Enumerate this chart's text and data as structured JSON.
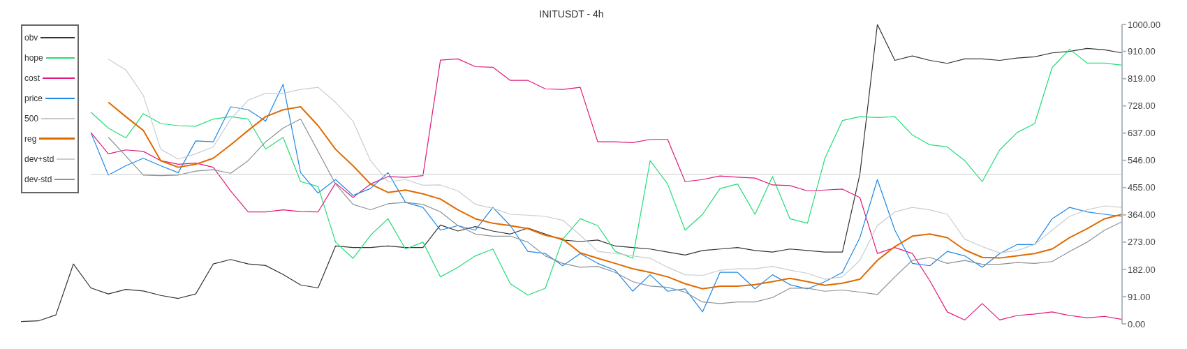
{
  "chart_data": {
    "type": "line",
    "title": "INITUSDT - 4h",
    "categories": [
      null,
      null,
      null,
      null,
      null,
      null,
      null,
      null,
      null,
      null,
      null,
      null,
      null,
      null,
      null,
      null,
      null,
      null,
      null,
      null,
      null,
      null,
      null,
      null,
      null,
      null,
      null,
      null,
      null,
      null,
      null,
      null,
      null,
      null,
      null,
      null,
      null,
      null,
      null,
      null,
      null,
      null,
      null,
      null,
      null,
      null,
      null,
      null,
      null,
      null,
      null,
      null,
      null,
      null,
      null,
      null,
      null,
      null,
      null,
      null,
      null,
      null,
      null,
      null
    ],
    "series": [
      {
        "name": "obv",
        "color": "#333333",
        "values": [
          8,
          10,
          30,
          200,
          120,
          100,
          115,
          110,
          95,
          85,
          100,
          200,
          215,
          200,
          195,
          165,
          130,
          120,
          260,
          255,
          255,
          260,
          255,
          255,
          330,
          310,
          325,
          310,
          300,
          320,
          300,
          280,
          275,
          280,
          260,
          255,
          250,
          240,
          230,
          245,
          250,
          255,
          245,
          240,
          250,
          245,
          240,
          240,
          500,
          1000,
          880,
          895,
          880,
          870,
          885,
          885,
          880,
          888,
          892,
          905,
          910,
          920,
          915,
          905
        ]
      },
      {
        "name": "hope",
        "color": "#22dd77",
        "values": [
          null,
          null,
          null,
          null,
          707,
          654,
          621,
          702,
          669,
          662,
          660,
          684,
          692,
          684,
          584,
          623,
          475,
          459,
          273,
          219,
          296,
          351,
          250,
          273,
          157,
          189,
          227,
          250,
          134,
          96,
          119,
          283,
          351,
          328,
          242,
          219,
          545,
          467,
          313,
          366,
          452,
          467,
          366,
          492,
          351,
          336,
          553,
          679,
          692,
          689,
          692,
          631,
          598,
          591,
          545,
          475,
          581,
          639,
          669,
          856,
          917,
          871,
          871,
          864
        ]
      },
      {
        "name": "cost",
        "color": "#e0197a",
        "values": [
          null,
          null,
          null,
          null,
          639,
          568,
          581,
          576,
          545,
          533,
          537,
          523,
          444,
          374,
          374,
          381,
          375,
          374,
          470,
          422,
          467,
          492,
          489,
          495,
          881,
          885,
          859,
          857,
          813,
          813,
          785,
          783,
          790,
          608,
          608,
          605,
          616,
          616,
          475,
          482,
          494,
          490,
          487,
          464,
          462,
          444,
          447,
          450,
          422,
          235,
          255,
          235,
          144,
          40,
          13,
          68,
          13,
          28,
          33,
          40,
          28,
          20,
          25,
          15
        ]
      },
      {
        "name": "price",
        "color": "#1e88e5",
        "values": [
          null,
          null,
          null,
          null,
          639,
          497,
          528,
          553,
          528,
          505,
          611,
          608,
          725,
          715,
          677,
          800,
          505,
          437,
          482,
          429,
          452,
          505,
          406,
          389,
          313,
          328,
          313,
          389,
          328,
          242,
          235,
          194,
          235,
          202,
          179,
          109,
          164,
          109,
          117,
          40,
          172,
          172,
          117,
          164,
          131,
          117,
          141,
          172,
          288,
          482,
          313,
          202,
          194,
          242,
          227,
          189,
          235,
          265,
          265,
          351,
          389,
          374,
          366,
          359
        ]
      },
      {
        "name": "500",
        "color": "#c8c8c8",
        "values": [
          null,
          null,
          null,
          null,
          500,
          500,
          500,
          500,
          500,
          500,
          500,
          500,
          500,
          500,
          500,
          500,
          500,
          500,
          500,
          500,
          500,
          500,
          500,
          500,
          500,
          500,
          500,
          500,
          500,
          500,
          500,
          500,
          500,
          500,
          500,
          500,
          500,
          500,
          500,
          500,
          500,
          500,
          500,
          500,
          500,
          500,
          500,
          500,
          500,
          500,
          500,
          500,
          500,
          500,
          500,
          500,
          500,
          500,
          500,
          500,
          500,
          500,
          500,
          500
        ]
      },
      {
        "name": "reg",
        "color": "#e06a00",
        "values": [
          null,
          null,
          null,
          null,
          null,
          740,
          692,
          646,
          545,
          523,
          533,
          553,
          598,
          646,
          692,
          715,
          725,
          662,
          583,
          528,
          467,
          439,
          447,
          434,
          417,
          381,
          351,
          336,
          328,
          318,
          296,
          283,
          237,
          219,
          202,
          184,
          172,
          157,
          134,
          117,
          126,
          126,
          131,
          141,
          152,
          141,
          129,
          136,
          149,
          212,
          258,
          293,
          300,
          288,
          247,
          222,
          220,
          227,
          235,
          250,
          288,
          318,
          351,
          366
        ]
      },
      {
        "name": "dev+std",
        "color": "#c8cdd2",
        "values": [
          null,
          null,
          null,
          null,
          null,
          884,
          848,
          763,
          583,
          550,
          568,
          591,
          684,
          747,
          770,
          770,
          783,
          790,
          740,
          677,
          545,
          475,
          482,
          463,
          464,
          444,
          399,
          386,
          366,
          363,
          359,
          346,
          296,
          242,
          235,
          227,
          219,
          189,
          164,
          162,
          179,
          184,
          184,
          192,
          179,
          169,
          149,
          157,
          212,
          328,
          374,
          389,
          381,
          366,
          283,
          258,
          237,
          245,
          265,
          313,
          359,
          381,
          394,
          389
        ]
      },
      {
        "name": "dev-std",
        "color": "#8a9299",
        "values": [
          null,
          null,
          null,
          null,
          null,
          623,
          561,
          497,
          495,
          497,
          510,
          515,
          503,
          545,
          608,
          654,
          684,
          576,
          467,
          399,
          381,
          401,
          406,
          399,
          374,
          328,
          300,
          293,
          293,
          273,
          227,
          202,
          189,
          192,
          172,
          141,
          126,
          122,
          106,
          73,
          68,
          73,
          73,
          88,
          119,
          119,
          109,
          113,
          106,
          98,
          157,
          212,
          222,
          202,
          212,
          199,
          199,
          205,
          202,
          208,
          242,
          273,
          313,
          341
        ]
      }
    ],
    "ylim": [
      0,
      1000
    ],
    "yticks": [
      {
        "value": 0,
        "label": "0.00"
      },
      {
        "value": 91,
        "label": "91.00"
      },
      {
        "value": 182,
        "label": "182.00"
      },
      {
        "value": 273,
        "label": "273.00"
      },
      {
        "value": 364,
        "label": "364.00"
      },
      {
        "value": 455,
        "label": "455.00"
      },
      {
        "value": 546,
        "label": "546.00"
      },
      {
        "value": 637,
        "label": "637.00"
      },
      {
        "value": 728,
        "label": "728.00"
      },
      {
        "value": 819,
        "label": "819.00"
      },
      {
        "value": 910,
        "label": "910.00"
      },
      {
        "value": 1000,
        "label": "1000.00"
      }
    ],
    "grid": false,
    "legend": "top left",
    "marker": "none",
    "tick_labels": "y"
  }
}
